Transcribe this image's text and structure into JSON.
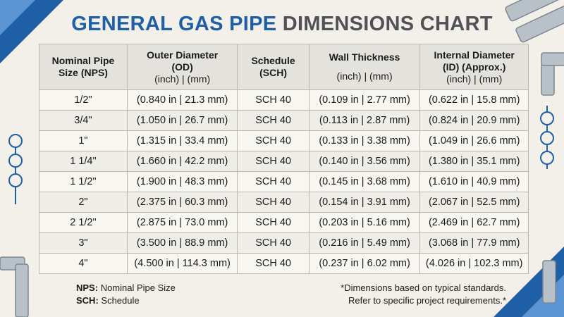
{
  "title": {
    "part1": "GENERAL GAS PIPE",
    "part2": "DIMENSIONS CHART"
  },
  "table": {
    "headers": [
      [
        "Nominal Pipe",
        "Size (NPS)"
      ],
      [
        "Outer Diameter",
        "(OD)",
        "(inch) | (mm)"
      ],
      [
        "Schedule",
        "(SCH)"
      ],
      [
        "Wall Thickness",
        "(inch) | (mm)"
      ],
      [
        "Internal Diameter",
        "(ID) (Approx.)",
        "(inch) | (mm)"
      ]
    ],
    "rows": [
      [
        "1/2\"",
        "(0.840 in | 21.3 mm)",
        "SCH 40",
        "(0.109 in | 2.77 mm)",
        "(0.622 in | 15.8 mm)"
      ],
      [
        "3/4\"",
        "(1.050 in | 26.7 mm)",
        "SCH 40",
        "(0.113 in | 2.87 mm)",
        "(0.824 in | 20.9 mm)"
      ],
      [
        "1\"",
        "(1.315 in | 33.4 mm)",
        "SCH 40",
        "(0.133 in | 3.38 mm)",
        "(1.049 in | 26.6 mm)"
      ],
      [
        "1 1/4\"",
        "(1.660 in | 42.2 mm)",
        "SCH 40",
        "(0.140 in | 3.56 mm)",
        "(1.380 in | 35.1 mm)"
      ],
      [
        "1 1/2\"",
        "(1.900 in | 48.3 mm)",
        "SCH 40",
        "(0.145 in | 3.68 mm)",
        "(1.610 in | 40.9 mm)"
      ],
      [
        "2\"",
        "(2.375 in | 60.3 mm)",
        "SCH 40",
        "(0.154 in | 3.91 mm)",
        "(2.067 in | 52.5 mm)"
      ],
      [
        "2 1/2\"",
        "(2.875 in | 73.0 mm)",
        "SCH 40",
        "(0.203 in | 5.16 mm)",
        "(2.469 in | 62.7 mm)"
      ],
      [
        "3\"",
        "(3.500 in | 88.9 mm)",
        "SCH 40",
        "(0.216 in | 5.49 mm)",
        "(3.068 in | 77.9 mm)"
      ],
      [
        "4\"",
        "(4.500 in | 114.3 mm)",
        "SCH 40",
        "(0.237 in | 6.02 mm)",
        "(4.026 in | 102.3 mm)"
      ]
    ]
  },
  "legend": [
    {
      "key": "NPS:",
      "text": "Nominal Pipe Size"
    },
    {
      "key": "SCH:",
      "text": "Schedule"
    }
  ],
  "note": [
    "*Dimensions based on typical standards.",
    "Refer to specific project requirements.*"
  ]
}
